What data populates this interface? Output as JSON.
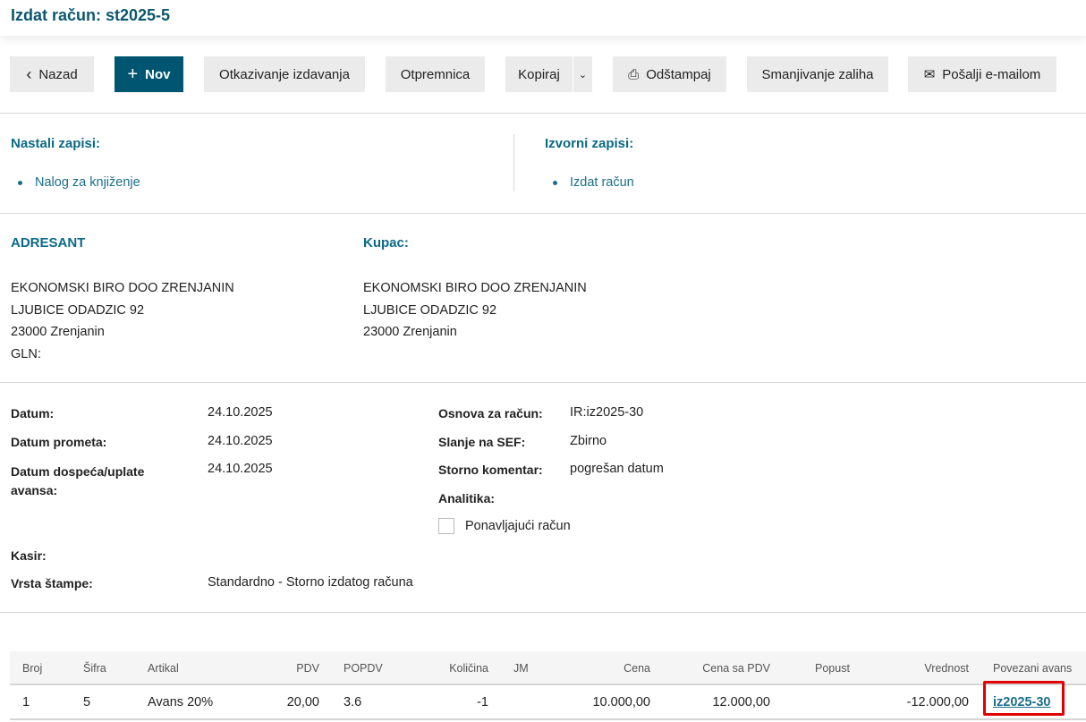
{
  "title": "Izdat račun: st2025-5",
  "toolbar": {
    "back": "Nazad",
    "new": "Nov",
    "cancel": "Otkazivanje izdavanja",
    "delivery": "Otpremnica",
    "copy": "Kopiraj",
    "print": "Odštampaj",
    "reduce": "Smanjivanje zaliha",
    "email": "Pošalji e-mailom"
  },
  "created": {
    "heading": "Nastali zapisi:",
    "items": [
      "Nalog za knjiženje"
    ]
  },
  "source": {
    "heading": "Izvorni zapisi:",
    "items": [
      "Izdat račun"
    ]
  },
  "sender": {
    "heading": "ADRESANT",
    "lines": [
      "EKONOMSKI BIRO DOO ZRENJANIN",
      "LJUBICE ODADZIC 92",
      "23000 Zrenjanin",
      "GLN:"
    ]
  },
  "buyer": {
    "heading": "Kupac:",
    "lines": [
      "EKONOMSKI BIRO DOO ZRENJANIN",
      "LJUBICE ODADZIC 92",
      "23000 Zrenjanin"
    ]
  },
  "details": {
    "datum_label": "Datum:",
    "datum": "24.10.2025",
    "promet_label": "Datum prometa:",
    "promet": "24.10.2025",
    "dospece_label": "Datum dospeća/uplate avansa:",
    "dospece": "24.10.2025",
    "kasir_label": "Kasir:",
    "stampa_label": "Vrsta štampe:",
    "stampa": "Standardno - Storno izdatog računa",
    "osnova_label": "Osnova za račun:",
    "osnova": "IR:iz2025-30",
    "sef_label": "Slanje na SEF:",
    "sef": "Zbirno",
    "storno_label": "Storno komentar:",
    "storno": "pogrešan datum",
    "analitika_label": "Analitika:",
    "recurring_label": "Ponavljajući račun",
    "recurring_checked": false
  },
  "table": {
    "headers": [
      "Broj",
      "Šifra",
      "Artikal",
      "PDV",
      "POPDV",
      "Količina",
      "JM",
      "Cena",
      "Cena sa PDV",
      "Popust",
      "Vrednost",
      "Povezani avans"
    ],
    "rows": [
      [
        "1",
        "5",
        "Avans 20%",
        "20,00",
        "3.6",
        "-1",
        "",
        "10.000,00",
        "12.000,00",
        "",
        "-12.000,00",
        "iz2025-30"
      ]
    ]
  },
  "colors": {
    "accent": "#005670",
    "highlight": "#e00000"
  }
}
